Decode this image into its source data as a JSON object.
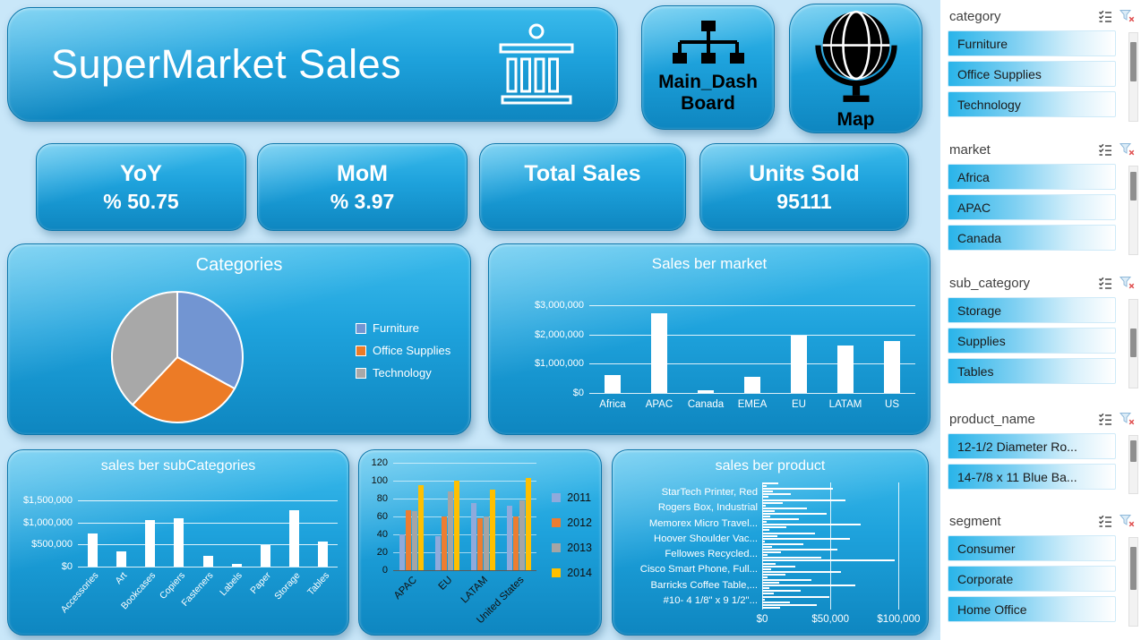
{
  "header": {
    "title": "SuperMarket Sales"
  },
  "nav": {
    "main_dash_label": "Main_Dash Board",
    "map_label": "Map"
  },
  "icons": {
    "title_icon": "bank-icon",
    "main_dash_icon": "org-chart-icon",
    "map_icon": "globe-icon",
    "slicer_header_icons": [
      "multiselect-icon",
      "clear-filter-icon"
    ]
  },
  "colors": {
    "page_bg": "#c9e7f9",
    "panel_blue": "#1ea2dc",
    "bar_white": "#ffffff",
    "slicer_item_cyan": "#29b4e9"
  },
  "kpis": [
    {
      "label": "YoY",
      "value": "% 50.75"
    },
    {
      "label": "MoM",
      "value": "% 3.97"
    },
    {
      "label": "Total Sales",
      "value": ""
    },
    {
      "label": "Units Sold",
      "value": "95111"
    }
  ],
  "slicers": [
    {
      "name": "category",
      "items": [
        "Furniture",
        "Office Supplies",
        "Technology"
      ]
    },
    {
      "name": "market",
      "items": [
        "Africa",
        "APAC",
        "Canada"
      ]
    },
    {
      "name": "sub_category",
      "items": [
        "Storage",
        "Supplies",
        "Tables"
      ]
    },
    {
      "name": "product_name",
      "items": [
        "12-1/2 Diameter Ro...",
        "14-7/8 x 11 Blue Ba..."
      ]
    },
    {
      "name": "segment",
      "items": [
        "Consumer",
        "Corporate",
        "Home Office"
      ]
    }
  ],
  "chart_data": [
    {
      "id": "categories-pie",
      "type": "pie",
      "title": "Categories",
      "labels": [
        "Furniture",
        "Office Supplies",
        "Technology"
      ],
      "values": [
        33,
        29,
        38
      ],
      "colors": [
        "#7295d2",
        "#ec7b26",
        "#a8a8a8"
      ],
      "legend_position": "right"
    },
    {
      "id": "sales-by-market",
      "type": "bar",
      "title": "Sales ber market",
      "categories": [
        "Africa",
        "APAC",
        "Canada",
        "EMEA",
        "EU",
        "LATAM",
        "US"
      ],
      "values": [
        620000,
        2720000,
        90000,
        560000,
        1960000,
        1620000,
        1790000
      ],
      "ylim": [
        0,
        3000000
      ],
      "yticks": [
        "$0",
        "$1,000,000",
        "$2,000,000",
        "$3,000,000"
      ],
      "bar_color": "#ffffff",
      "grid": true
    },
    {
      "id": "sales-by-subcategories",
      "type": "bar",
      "title": "sales ber subCategories",
      "categories": [
        "Accessories",
        "Art",
        "Bookcases",
        "Copiers",
        "Fasteners",
        "Labels",
        "Paper",
        "Storage",
        "Tables"
      ],
      "values": [
        760000,
        340000,
        1060000,
        1090000,
        250000,
        70000,
        480000,
        1270000,
        560000
      ],
      "ylim": [
        0,
        1500000
      ],
      "yticks": [
        "$0",
        "$500,000",
        "$1,000,000",
        "$1,500,000"
      ],
      "bar_color": "#ffffff",
      "grid": true
    },
    {
      "id": "sales-by-year-market",
      "type": "bar",
      "subtype": "grouped",
      "title": "",
      "categories": [
        "APAC",
        "EU",
        "LATAM",
        "United States"
      ],
      "series": [
        {
          "name": "2011",
          "color": "#8faadc",
          "values": [
            40,
            38,
            75,
            72
          ]
        },
        {
          "name": "2012",
          "color": "#ed7d31",
          "values": [
            67,
            60,
            58,
            60
          ]
        },
        {
          "name": "2013",
          "color": "#a5a5a5",
          "values": [
            66,
            88,
            60,
            78
          ]
        },
        {
          "name": "2014",
          "color": "#ffc000",
          "values": [
            95,
            100,
            90,
            103
          ]
        }
      ],
      "ylim": [
        0,
        120
      ],
      "yticks": [
        0,
        20,
        40,
        60,
        80,
        100,
        120
      ],
      "legend_position": "right",
      "grid": true
    },
    {
      "id": "sales-by-product",
      "type": "bar",
      "subtype": "horizontal",
      "title": "sales ber product",
      "visible_labels": [
        "StarTech Printer, Red",
        "Rogers Box, Industrial",
        "Memorex Micro Travel...",
        "Hoover Shoulder Vac...",
        "Fellowes Recycled...",
        "Cisco Smart Phone, Full...",
        "Barricks Coffee Table,...",
        "#10- 4 1/8\" x 9 1/2\"..."
      ],
      "values": [
        12000,
        3500,
        52000,
        8000,
        21000,
        4500,
        61000,
        15000,
        2500,
        33000,
        9000,
        47000,
        6000,
        27000,
        3000,
        72000,
        18000,
        5500,
        39000,
        11000,
        64000,
        2000,
        30000,
        7500,
        55000,
        14000,
        4000,
        43000,
        97000,
        9500,
        24000,
        6500,
        58000,
        17000,
        3800,
        36000,
        12500,
        68000,
        5000,
        28000,
        8500,
        49000,
        2200,
        20000,
        40000,
        13000
      ],
      "xlim": [
        0,
        105000
      ],
      "xticks": [
        "$0",
        "$50,000",
        "$100,000"
      ],
      "xtick_values": [
        0,
        50000,
        100000
      ],
      "bar_color": "#ffffff",
      "grid": true
    }
  ]
}
